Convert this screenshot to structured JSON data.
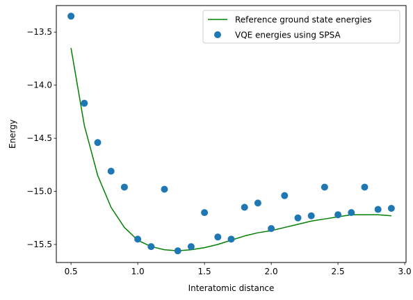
{
  "chart_data": {
    "type": "scatter",
    "xlabel": "Interatomic distance",
    "ylabel": "Energy",
    "xlim": [
      0.39,
      3.01
    ],
    "ylim": [
      -15.67,
      -13.25
    ],
    "x_ticks": [
      0.5,
      1.0,
      1.5,
      2.0,
      2.5,
      3.0
    ],
    "x_tick_labels": [
      "0.5",
      "1.0",
      "1.5",
      "2.0",
      "2.5",
      "3.0"
    ],
    "y_ticks": [
      -13.5,
      -14.0,
      -14.5,
      -15.0,
      -15.5
    ],
    "y_tick_labels": [
      "−13.5",
      "−14.0",
      "−14.5",
      "−15.0",
      "−15.5"
    ],
    "grid": false,
    "legend_position": "top-right",
    "series": [
      {
        "name": "Reference ground state energies",
        "kind": "line",
        "color": "#008000",
        "x": [
          0.5,
          0.6,
          0.7,
          0.8,
          0.9,
          1.0,
          1.1,
          1.2,
          1.3,
          1.4,
          1.5,
          1.6,
          1.7,
          1.8,
          1.9,
          2.0,
          2.1,
          2.2,
          2.3,
          2.4,
          2.5,
          2.6,
          2.7,
          2.8,
          2.9
        ],
        "y": [
          -13.65,
          -14.38,
          -14.85,
          -15.15,
          -15.34,
          -15.46,
          -15.52,
          -15.55,
          -15.56,
          -15.55,
          -15.53,
          -15.5,
          -15.46,
          -15.42,
          -15.39,
          -15.37,
          -15.34,
          -15.31,
          -15.28,
          -15.26,
          -15.24,
          -15.22,
          -15.22,
          -15.22,
          -15.23
        ]
      },
      {
        "name": "VQE energies using SPSA",
        "kind": "scatter",
        "color": "#1f77b4",
        "x": [
          0.5,
          0.6,
          0.7,
          0.8,
          0.9,
          1.0,
          1.1,
          1.2,
          1.3,
          1.4,
          1.5,
          1.6,
          1.7,
          1.8,
          1.9,
          2.0,
          2.1,
          2.2,
          2.3,
          2.4,
          2.5,
          2.6,
          2.7,
          2.8,
          2.9
        ],
        "y": [
          -13.35,
          -14.17,
          -14.54,
          -14.81,
          -14.96,
          -15.45,
          -15.52,
          -14.98,
          -15.56,
          -15.52,
          -15.2,
          -15.43,
          -15.45,
          -15.15,
          -15.11,
          -15.35,
          -15.04,
          -15.25,
          -15.23,
          -14.96,
          -15.22,
          -15.2,
          -14.96,
          -15.17,
          -15.16
        ]
      }
    ]
  }
}
